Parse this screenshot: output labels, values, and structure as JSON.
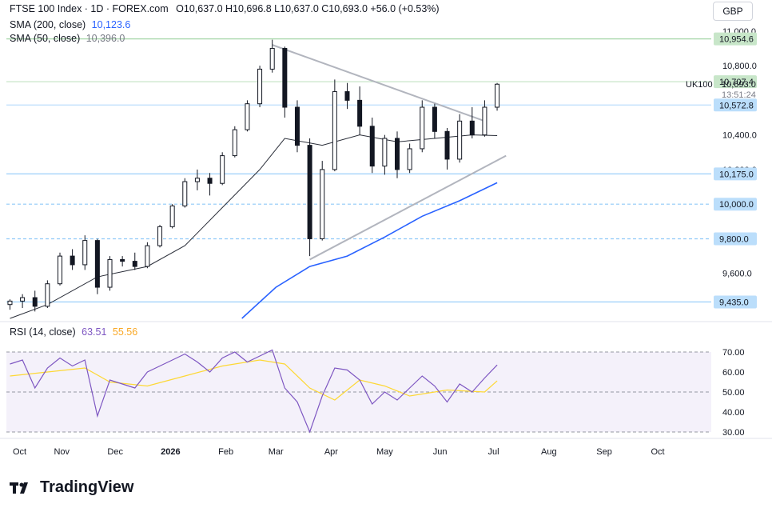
{
  "header": {
    "title": "FTSE 100 Index · 1D · FOREX.com",
    "ohlc": "O10,637.0  H10,696.8  L10,637.0  C10,693.0  +56.0 (+0.53%)",
    "sma200_label": "SMA (200, close)",
    "sma200_value": "10,123.6",
    "sma50_label": "SMA (50, close)",
    "sma50_value": "10,396.0",
    "currency_button": "GBP"
  },
  "price_axis": {
    "ticks": [
      "11,000.0",
      "10,800.0",
      "10,400.0",
      "10,200.0",
      "9,600.0"
    ],
    "badges": [
      {
        "text": "10,954.6",
        "value": 10954.6,
        "bg": "#c8e6c9",
        "line": "#a5d6a7"
      },
      {
        "text": "10,707.4",
        "value": 10707.4,
        "bg": "#c8e6c9",
        "line": "#c8e6c9"
      },
      {
        "text": "10,572.8",
        "value": 10572.8,
        "bg": "#bbdefb",
        "line": "#bbdefb"
      },
      {
        "text": "10,175.0",
        "value": 10175.0,
        "bg": "#bbdefb",
        "line": "#90caf9"
      },
      {
        "text": "10,000.0",
        "value": 10000.0,
        "bg": "#bbdefb",
        "line": "#90caf9"
      },
      {
        "text": "9,800.0",
        "value": 9800.0,
        "bg": "#bbdefb",
        "line": "#90caf9"
      },
      {
        "text": "9,435.0",
        "value": 9435.0,
        "bg": "#bbdefb",
        "line": "#90caf9"
      }
    ],
    "symbol": "UK100",
    "last_price": "10,693.0",
    "countdown": "13:51:24"
  },
  "rsi": {
    "label": "RSI (14, close)",
    "value": "63.51",
    "ma_value": "55.56",
    "ticks": [
      "70.00",
      "60.00",
      "50.00",
      "40.00",
      "30.00"
    ],
    "rsi_color": "#7e57c2",
    "ma_color": "#fdd835"
  },
  "time_axis": {
    "labels": [
      "Oct",
      "Nov",
      "Dec",
      "2026",
      "Feb",
      "Mar",
      "Apr",
      "May",
      "Jun",
      "Jul",
      "Aug",
      "Sep",
      "Oct"
    ]
  },
  "brand": "TradingView",
  "chart_data": {
    "type": "candlestick",
    "y_range": [
      9340,
      11050
    ],
    "x_start": "2025-10-01",
    "x_end": "2026-10-31",
    "ohlc_points": [
      [
        "2025-10-03",
        9420,
        9450,
        9390,
        9440
      ],
      [
        "2025-10-10",
        9440,
        9480,
        9400,
        9460
      ],
      [
        "2025-10-17",
        9460,
        9500,
        9380,
        9410
      ],
      [
        "2025-10-24",
        9410,
        9560,
        9400,
        9540
      ],
      [
        "2025-10-31",
        9540,
        9720,
        9530,
        9700
      ],
      [
        "2025-11-07",
        9700,
        9740,
        9620,
        9650
      ],
      [
        "2025-11-14",
        9650,
        9820,
        9620,
        9790
      ],
      [
        "2025-11-21",
        9790,
        9800,
        9480,
        9520
      ],
      [
        "2025-11-28",
        9520,
        9700,
        9500,
        9680
      ],
      [
        "2025-12-05",
        9680,
        9700,
        9640,
        9670
      ],
      [
        "2025-12-12",
        9670,
        9720,
        9620,
        9640
      ],
      [
        "2025-12-19",
        9640,
        9780,
        9630,
        9760
      ],
      [
        "2025-12-26",
        9760,
        9880,
        9750,
        9870
      ],
      [
        "2026-01-02",
        9870,
        10000,
        9860,
        9990
      ],
      [
        "2026-01-09",
        9990,
        10150,
        9980,
        10130
      ],
      [
        "2026-01-16",
        10130,
        10200,
        10080,
        10150
      ],
      [
        "2026-01-23",
        10150,
        10180,
        10050,
        10120
      ],
      [
        "2026-01-30",
        10120,
        10300,
        10110,
        10280
      ],
      [
        "2026-02-06",
        10280,
        10450,
        10270,
        10430
      ],
      [
        "2026-02-13",
        10430,
        10600,
        10420,
        10580
      ],
      [
        "2026-02-20",
        10580,
        10800,
        10560,
        10780
      ],
      [
        "2026-02-27",
        10780,
        10950,
        10760,
        10900
      ],
      [
        "2026-03-06",
        10900,
        10910,
        10500,
        10560
      ],
      [
        "2026-03-13",
        10560,
        10600,
        10300,
        10340
      ],
      [
        "2026-03-20",
        10340,
        10380,
        9700,
        9800
      ],
      [
        "2026-03-27",
        9800,
        10250,
        9790,
        10200
      ],
      [
        "2026-04-03",
        10200,
        10720,
        10190,
        10650
      ],
      [
        "2026-04-10",
        10650,
        10700,
        10550,
        10600
      ],
      [
        "2026-04-17",
        10600,
        10680,
        10400,
        10450
      ],
      [
        "2026-04-24",
        10450,
        10500,
        10180,
        10220
      ],
      [
        "2026-05-01",
        10220,
        10400,
        10170,
        10380
      ],
      [
        "2026-05-08",
        10380,
        10420,
        10150,
        10200
      ],
      [
        "2026-05-15",
        10200,
        10350,
        10180,
        10320
      ],
      [
        "2026-05-22",
        10320,
        10600,
        10300,
        10560
      ],
      [
        "2026-05-29",
        10560,
        10580,
        10380,
        10420
      ],
      [
        "2026-06-05",
        10420,
        10440,
        10200,
        10260
      ],
      [
        "2026-06-12",
        10260,
        10520,
        10240,
        10480
      ],
      [
        "2026-06-19",
        10480,
        10560,
        10380,
        10400
      ],
      [
        "2026-06-26",
        10400,
        10600,
        10390,
        10560
      ],
      [
        "2026-07-03",
        10560,
        10700,
        10540,
        10693
      ]
    ],
    "sma50": [
      [
        "2025-10-03",
        9340
      ],
      [
        "2025-10-24",
        9420
      ],
      [
        "2025-11-21",
        9580
      ],
      [
        "2025-12-19",
        9640
      ],
      [
        "2026-01-09",
        9760
      ],
      [
        "2026-01-30",
        9980
      ],
      [
        "2026-02-20",
        10200
      ],
      [
        "2026-03-06",
        10380
      ],
      [
        "2026-03-27",
        10340
      ],
      [
        "2026-04-17",
        10400
      ],
      [
        "2026-05-08",
        10360
      ],
      [
        "2026-05-29",
        10380
      ],
      [
        "2026-06-19",
        10400
      ],
      [
        "2026-07-03",
        10396
      ]
    ],
    "sma200": [
      [
        "2026-02-10",
        9340
      ],
      [
        "2026-03-01",
        9520
      ],
      [
        "2026-03-20",
        9640
      ],
      [
        "2026-04-10",
        9700
      ],
      [
        "2026-05-01",
        9810
      ],
      [
        "2026-05-22",
        9930
      ],
      [
        "2026-06-12",
        10020
      ],
      [
        "2026-07-03",
        10123.6
      ]
    ],
    "trendlines": [
      {
        "from": [
          "2026-02-27",
          10920
        ],
        "to": [
          "2026-06-26",
          10480
        ],
        "color": "#b2b5be"
      },
      {
        "from": [
          "2026-03-20",
          9680
        ],
        "to": [
          "2026-07-08",
          10280
        ],
        "color": "#b2b5be"
      }
    ],
    "rsi_points": [
      [
        "2025-10-03",
        64
      ],
      [
        "2025-10-10",
        66
      ],
      [
        "2025-10-17",
        52
      ],
      [
        "2025-10-24",
        62
      ],
      [
        "2025-10-31",
        67
      ],
      [
        "2025-11-07",
        63
      ],
      [
        "2025-11-14",
        66
      ],
      [
        "2025-11-21",
        38
      ],
      [
        "2025-11-28",
        56
      ],
      [
        "2025-12-05",
        54
      ],
      [
        "2025-12-12",
        52
      ],
      [
        "2025-12-19",
        60
      ],
      [
        "2025-12-26",
        63
      ],
      [
        "2026-01-02",
        66
      ],
      [
        "2026-01-09",
        69
      ],
      [
        "2026-01-16",
        65
      ],
      [
        "2026-01-23",
        60
      ],
      [
        "2026-01-30",
        67
      ],
      [
        "2026-02-06",
        70
      ],
      [
        "2026-02-13",
        65
      ],
      [
        "2026-02-20",
        68
      ],
      [
        "2026-02-27",
        71
      ],
      [
        "2026-03-06",
        52
      ],
      [
        "2026-03-13",
        45
      ],
      [
        "2026-03-20",
        30
      ],
      [
        "2026-03-27",
        48
      ],
      [
        "2026-04-03",
        62
      ],
      [
        "2026-04-10",
        61
      ],
      [
        "2026-04-17",
        56
      ],
      [
        "2026-04-24",
        44
      ],
      [
        "2026-05-01",
        50
      ],
      [
        "2026-05-08",
        46
      ],
      [
        "2026-05-15",
        52
      ],
      [
        "2026-05-22",
        58
      ],
      [
        "2026-05-29",
        53
      ],
      [
        "2026-06-05",
        45
      ],
      [
        "2026-06-12",
        54
      ],
      [
        "2026-06-19",
        50
      ],
      [
        "2026-06-26",
        57
      ],
      [
        "2026-07-03",
        63.51
      ]
    ],
    "rsi_ma_points": [
      [
        "2025-10-03",
        58
      ],
      [
        "2025-10-24",
        60
      ],
      [
        "2025-11-14",
        62
      ],
      [
        "2025-11-28",
        55
      ],
      [
        "2025-12-19",
        53
      ],
      [
        "2026-01-09",
        58
      ],
      [
        "2026-01-30",
        63
      ],
      [
        "2026-02-20",
        66
      ],
      [
        "2026-03-06",
        64
      ],
      [
        "2026-03-20",
        52
      ],
      [
        "2026-04-03",
        46
      ],
      [
        "2026-04-17",
        56
      ],
      [
        "2026-05-01",
        53
      ],
      [
        "2026-05-15",
        48
      ],
      [
        "2026-06-05",
        51
      ],
      [
        "2026-06-26",
        50
      ],
      [
        "2026-07-03",
        55.56
      ]
    ],
    "rsi_range": [
      28,
      78
    ]
  }
}
